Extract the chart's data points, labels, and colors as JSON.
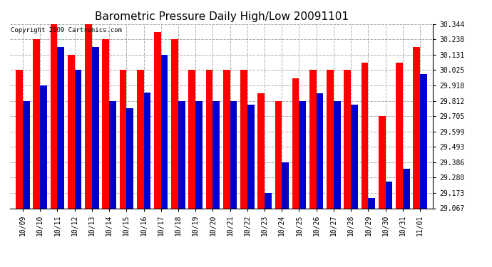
{
  "title": "Barometric Pressure Daily High/Low 20091101",
  "copyright": "Copyright 2009 Cartronics.com",
  "dates": [
    "10/09",
    "10/10",
    "10/11",
    "10/12",
    "10/13",
    "10/14",
    "10/15",
    "10/16",
    "10/17",
    "10/18",
    "10/19",
    "10/20",
    "10/21",
    "10/22",
    "10/23",
    "10/24",
    "10/25",
    "10/26",
    "10/27",
    "10/28",
    "10/29",
    "10/30",
    "10/31",
    "11/01"
  ],
  "highs": [
    30.025,
    30.238,
    30.344,
    30.131,
    30.344,
    30.238,
    30.025,
    30.025,
    30.29,
    30.238,
    30.025,
    30.025,
    30.025,
    30.025,
    29.865,
    29.812,
    29.97,
    30.025,
    30.025,
    30.025,
    30.078,
    29.705,
    30.078,
    30.185
  ],
  "lows": [
    29.812,
    29.918,
    30.185,
    30.025,
    30.185,
    29.812,
    29.76,
    29.87,
    30.131,
    29.812,
    29.812,
    29.812,
    29.812,
    29.785,
    29.173,
    29.386,
    29.812,
    29.865,
    29.812,
    29.785,
    29.138,
    29.252,
    29.34,
    29.998
  ],
  "ylim": [
    29.067,
    30.344
  ],
  "yticks": [
    29.067,
    29.173,
    29.28,
    29.386,
    29.493,
    29.599,
    29.705,
    29.812,
    29.918,
    30.025,
    30.131,
    30.238,
    30.344
  ],
  "high_color": "#ff0000",
  "low_color": "#0000cc",
  "bg_color": "#ffffff",
  "grid_color": "#999999",
  "title_fontsize": 11,
  "bar_width": 0.4,
  "figwidth": 6.9,
  "figheight": 3.75,
  "dpi": 100
}
